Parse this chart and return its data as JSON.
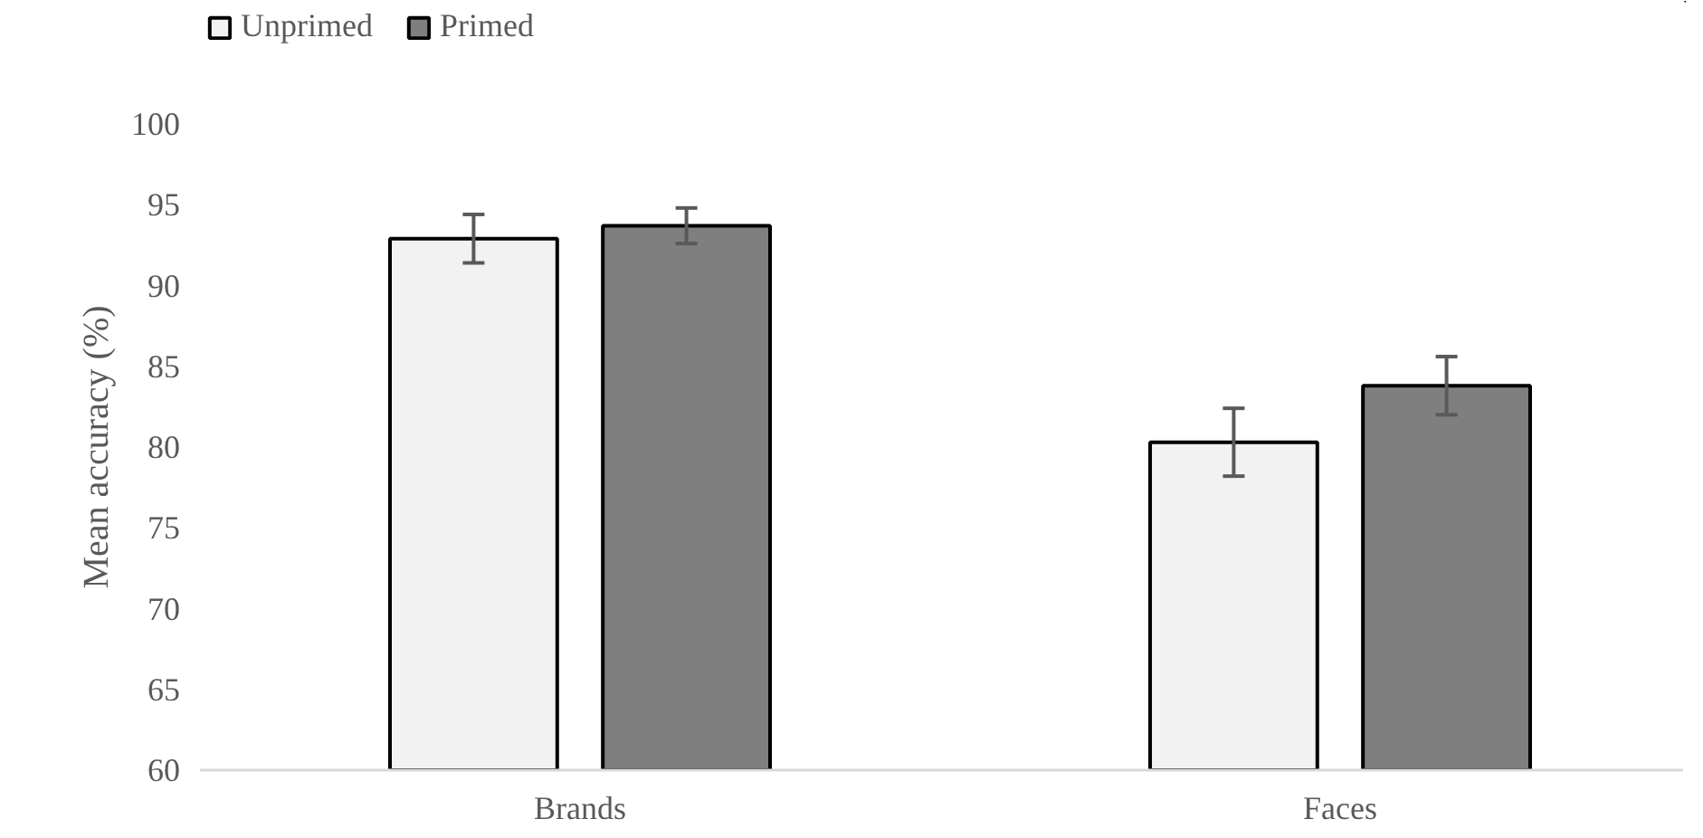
{
  "chart_data": {
    "type": "bar",
    "ylabel": "Mean accuracy (%)",
    "categories": [
      "Brands",
      "Faces"
    ],
    "series": [
      {
        "name": "Unprimed",
        "color": "#f2f2f2",
        "values": [
          92.9,
          80.3
        ],
        "errors": [
          1.5,
          2.1
        ]
      },
      {
        "name": "Primed",
        "color": "#7f7f7f",
        "values": [
          93.7,
          83.8
        ],
        "errors": [
          1.1,
          1.8
        ]
      }
    ],
    "ylim": [
      60,
      100
    ],
    "yticks": [
      60,
      65,
      70,
      75,
      80,
      85,
      90,
      95,
      100
    ],
    "grid": false,
    "legend": "top left"
  }
}
